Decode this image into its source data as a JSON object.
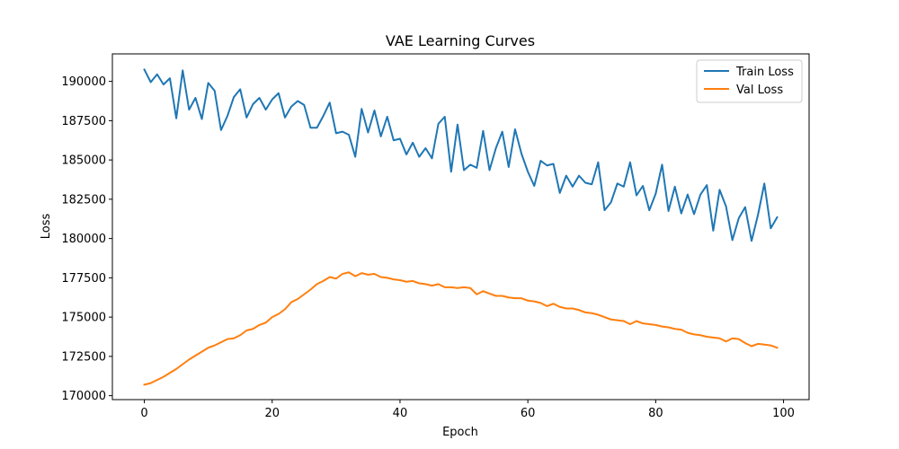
{
  "chart_data": {
    "type": "line",
    "title": "VAE Learning Curves",
    "xlabel": "Epoch",
    "ylabel": "Loss",
    "xlim": [
      -5,
      104
    ],
    "ylim": [
      169750,
      191750
    ],
    "xticks": [
      0,
      20,
      40,
      60,
      80,
      100
    ],
    "yticks": [
      170000,
      172500,
      175000,
      177500,
      180000,
      182500,
      185000,
      187500,
      190000
    ],
    "grid": false,
    "legend_position": "upper right",
    "series": [
      {
        "name": "Train Loss",
        "color": "#1f77b4",
        "x": [
          0,
          1,
          2,
          3,
          4,
          5,
          6,
          7,
          8,
          9,
          10,
          11,
          12,
          13,
          14,
          15,
          16,
          17,
          18,
          19,
          20,
          21,
          22,
          23,
          24,
          25,
          26,
          27,
          28,
          29,
          30,
          31,
          32,
          33,
          34,
          35,
          36,
          37,
          38,
          39,
          40,
          41,
          42,
          43,
          44,
          45,
          46,
          47,
          48,
          49,
          50,
          51,
          52,
          53,
          54,
          55,
          56,
          57,
          58,
          59,
          60,
          61,
          62,
          63,
          64,
          65,
          66,
          67,
          68,
          69,
          70,
          71,
          72,
          73,
          74,
          75,
          76,
          77,
          78,
          79,
          80,
          81,
          82,
          83,
          84,
          85,
          86,
          87,
          88,
          89,
          90,
          91,
          92,
          93,
          94,
          95,
          96,
          97,
          98,
          99
        ],
        "values": [
          190750,
          189950,
          190450,
          189800,
          190200,
          187650,
          190700,
          188200,
          188950,
          187600,
          189900,
          189400,
          186900,
          187800,
          189000,
          189500,
          187700,
          188550,
          188950,
          188200,
          188850,
          189250,
          187700,
          188400,
          188750,
          188500,
          187050,
          187050,
          187800,
          188650,
          186700,
          186800,
          186600,
          185200,
          188250,
          186750,
          188150,
          186500,
          187750,
          186250,
          186350,
          185350,
          186100,
          185200,
          185750,
          185100,
          187300,
          187750,
          184250,
          187250,
          184350,
          184700,
          184500,
          186850,
          184350,
          185750,
          186800,
          184550,
          186950,
          185400,
          184250,
          183350,
          184950,
          184650,
          184750,
          182900,
          184000,
          183300,
          184000,
          183550,
          183450,
          184850,
          181800,
          182300,
          183500,
          183300,
          184850,
          182750,
          183350,
          181800,
          182850,
          184700,
          181750,
          183300,
          181600,
          182800,
          181550,
          182800,
          183400,
          180500,
          183100,
          182050,
          179900,
          181300,
          182000,
          179850,
          181500,
          183500,
          180650,
          181350
        ]
      },
      {
        "name": "Val Loss",
        "color": "#ff7f0e",
        "x": [
          0,
          1,
          2,
          3,
          4,
          5,
          6,
          7,
          8,
          9,
          10,
          11,
          12,
          13,
          14,
          15,
          16,
          17,
          18,
          19,
          20,
          21,
          22,
          23,
          24,
          25,
          26,
          27,
          28,
          29,
          30,
          31,
          32,
          33,
          34,
          35,
          36,
          37,
          38,
          39,
          40,
          41,
          42,
          43,
          44,
          45,
          46,
          47,
          48,
          49,
          50,
          51,
          52,
          53,
          54,
          55,
          56,
          57,
          58,
          59,
          60,
          61,
          62,
          63,
          64,
          65,
          66,
          67,
          68,
          69,
          70,
          71,
          72,
          73,
          74,
          75,
          76,
          77,
          78,
          79,
          80,
          81,
          82,
          83,
          84,
          85,
          86,
          87,
          88,
          89,
          90,
          91,
          92,
          93,
          94,
          95,
          96,
          97,
          98,
          99
        ],
        "values": [
          170700,
          170800,
          171000,
          171200,
          171450,
          171700,
          172000,
          172300,
          172550,
          172800,
          173050,
          173200,
          173400,
          173600,
          173650,
          173850,
          174150,
          174250,
          174500,
          174650,
          175000,
          175200,
          175500,
          175950,
          176150,
          176450,
          176750,
          177100,
          177300,
          177550,
          177450,
          177750,
          177850,
          177600,
          177800,
          177700,
          177750,
          177550,
          177500,
          177400,
          177350,
          177250,
          177300,
          177150,
          177100,
          177000,
          177100,
          176900,
          176900,
          176850,
          176900,
          176850,
          176450,
          176650,
          176500,
          176350,
          176350,
          176250,
          176200,
          176200,
          176050,
          176000,
          175900,
          175700,
          175850,
          175650,
          175550,
          175550,
          175450,
          175300,
          175250,
          175150,
          175000,
          174850,
          174800,
          174750,
          174550,
          174750,
          174600,
          174550,
          174500,
          174400,
          174350,
          174250,
          174200,
          174000,
          173900,
          173850,
          173750,
          173700,
          173650,
          173450,
          173650,
          173600,
          173350,
          173150,
          173300,
          173250,
          173200,
          173050
        ]
      }
    ]
  }
}
